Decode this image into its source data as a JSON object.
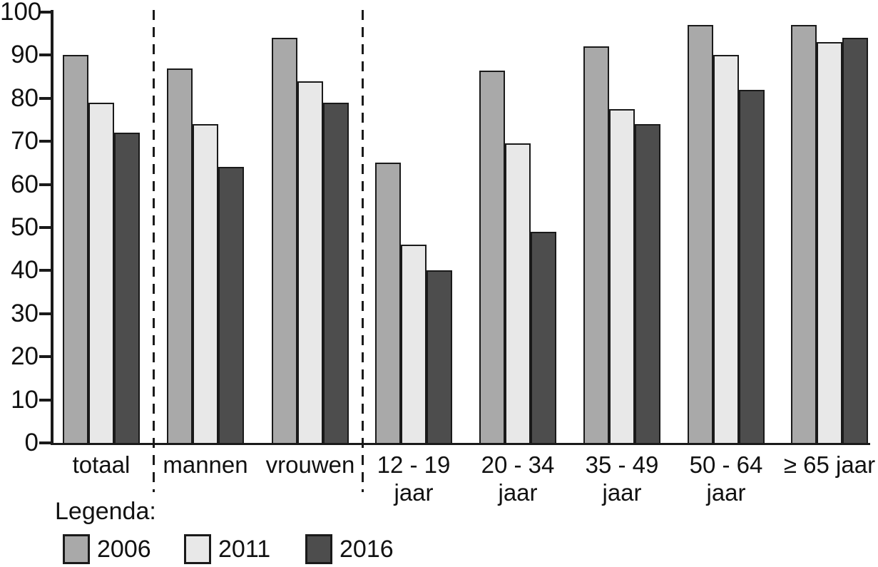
{
  "chart_data": {
    "type": "bar",
    "categories": [
      "totaal",
      "mannen",
      "vrouwen",
      "12 - 19 jaar",
      "20 - 34 jaar",
      "35 - 49 jaar",
      "50 - 64 jaar",
      "≥ 65 jaar"
    ],
    "category_label_lines": [
      [
        "totaal"
      ],
      [
        "mannen"
      ],
      [
        "vrouwen"
      ],
      [
        "12 - 19",
        "jaar"
      ],
      [
        "20 - 34",
        "jaar"
      ],
      [
        "35 - 49",
        "jaar"
      ],
      [
        "50 - 64",
        "jaar"
      ],
      [
        "≥ 65 jaar"
      ]
    ],
    "series": [
      {
        "name": "2006",
        "color": "#a9a9a9",
        "values": [
          90,
          87,
          94,
          65,
          86.5,
          92,
          97,
          97
        ]
      },
      {
        "name": "2011",
        "color": "#e8e8e8",
        "values": [
          79,
          74,
          84,
          46,
          69.5,
          77.5,
          90,
          93
        ]
      },
      {
        "name": "2016",
        "color": "#4d4d4d",
        "values": [
          72,
          64,
          79,
          40,
          49,
          74,
          82,
          94
        ]
      }
    ],
    "xlabel": "",
    "ylabel": "",
    "ylim": [
      0,
      100
    ],
    "yticks": [
      0,
      10,
      20,
      30,
      40,
      50,
      60,
      70,
      80,
      90,
      100
    ],
    "grid": false,
    "separators_after_category_index": [
      0,
      2
    ],
    "bar_border_color": "#1a1a1a",
    "axis_color": "#1a1a1a",
    "text_color": "#111111",
    "legend": {
      "title": "Legenda:",
      "position": "bottom-left",
      "entries": [
        {
          "label": "2006",
          "color": "#a9a9a9"
        },
        {
          "label": "2011",
          "color": "#e8e8e8"
        },
        {
          "label": "2016",
          "color": "#4d4d4d"
        }
      ]
    }
  }
}
